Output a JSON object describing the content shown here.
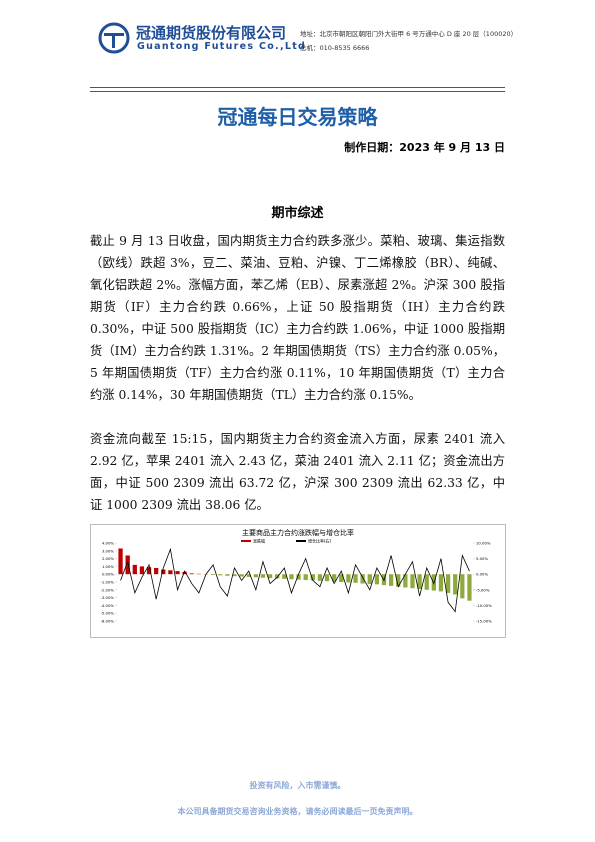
{
  "header": {
    "company": "冠通期货股份有限公司",
    "company_en": "Guantong Futures Co.,Ltd",
    "address": "地址：北京市朝阳区朝阳门外大街甲 6 号万通中心 D 座 20 层（100020）",
    "phone": "总机：010-8535 6666"
  },
  "title": "冠通每日交易策略",
  "date": "制作日期：2023 年 9 月 13 日",
  "section": "期市综述",
  "paragraphs": [
    "截止 9 月 13 日收盘，国内期货主力合约跌多涨少。菜粕、玻璃、集运指数（欧线）跌超 3%，豆二、菜油、豆粕、沪镍、丁二烯橡胶（BR）、纯碱、氧化铝跌超 2%。涨幅方面，苯乙烯（EB）、尿素涨超 2%。沪深 300 股指期货（IF）主力合约跌 0.66%，上证 50 股指期货（IH）主力合约跌 0.30%，中证 500 股指期货（IC）主力合约跌 1.06%，中证 1000 股指期货（IM）主力合约跌 1.31%。2 年期国债期货（TS）主力合约涨 0.05%，5 年期国债期货（TF）主力合约涨 0.11%，10 年期国债期货（T）主力合约涨 0.14%，30 年期国债期货（TL）主力合约涨 0.15%。",
    "资金流向截至 15:15，国内期货主力合约资金流入方面，尿素 2401 流入 2.92 亿，苹果 2401 流入 2.43 亿，菜油 2401 流入 2.11 亿；资金流出方面，中证 500 2309 流出 63.72 亿，沪深 300 2309 流出 62.33 亿，中证 1000 2309 流出 38.06 亿。"
  ],
  "chart_data": {
    "type": "bar",
    "title": "主要商品主力合约涨跌幅与增仓比率",
    "categories": [
      null,
      null,
      null,
      null,
      null,
      null,
      null,
      null,
      null,
      null,
      null,
      null,
      null,
      null,
      null,
      null,
      null,
      null,
      null,
      null,
      null,
      null,
      null,
      null,
      null,
      null,
      null,
      null,
      null,
      null,
      null,
      null,
      null,
      null,
      null,
      null,
      null,
      null,
      null,
      null,
      null,
      null,
      null,
      null,
      null,
      null,
      null,
      null,
      null,
      null
    ],
    "series": [
      {
        "name": "涨跌幅",
        "color": "#c00000",
        "neg_color": "#8faa3c",
        "values": [
          3.3,
          2.4,
          1.2,
          1.0,
          0.9,
          0.8,
          0.6,
          0.5,
          0.4,
          0.3,
          0.1,
          0.05,
          -0.05,
          -0.1,
          -0.15,
          -0.2,
          -0.25,
          -0.3,
          -0.35,
          -0.4,
          -0.45,
          -0.5,
          -0.55,
          -0.6,
          -0.65,
          -0.7,
          -0.75,
          -0.8,
          -0.85,
          -0.9,
          -0.95,
          -1.0,
          -1.05,
          -1.1,
          -1.2,
          -1.25,
          -1.3,
          -1.4,
          -1.5,
          -1.6,
          -1.7,
          -1.8,
          -1.9,
          -2.0,
          -2.1,
          -2.2,
          -2.4,
          -2.6,
          -3.1,
          -3.4
        ]
      },
      {
        "name": "增仓比率(右)",
        "color": "#000000",
        "axis": "y2",
        "values": [
          -2,
          4,
          -6,
          -1,
          3,
          -8,
          2,
          8,
          -5,
          1,
          -3,
          -6,
          0,
          3,
          -4,
          -7,
          2,
          -2,
          1,
          -5,
          4,
          -3,
          -1,
          2,
          -6,
          0,
          5,
          -2,
          -4,
          2,
          -3,
          1,
          -6,
          3,
          -1,
          -5,
          2,
          -2,
          6,
          -4,
          0,
          4,
          -7,
          2,
          -3,
          5,
          -9,
          -12,
          6,
          1
        ]
      }
    ],
    "ylim": [
      -6,
      4
    ],
    "yticks": [
      {
        "value": 4,
        "label": "4.00%"
      },
      {
        "value": 3,
        "label": "3.00%"
      },
      {
        "value": 2,
        "label": "2.00%"
      },
      {
        "value": 1,
        "label": "1.00%"
      },
      {
        "value": 0,
        "label": "0.00%"
      },
      {
        "value": -1,
        "label": "-1.00%"
      },
      {
        "value": -2,
        "label": "-2.00%"
      },
      {
        "value": -3,
        "label": "-3.00%"
      },
      {
        "value": -4,
        "label": "-4.00%"
      },
      {
        "value": -5,
        "label": "-5.00%"
      },
      {
        "value": -6,
        "label": "-6.00%"
      }
    ],
    "y2lim": [
      -15,
      10
    ],
    "y2ticks": [
      {
        "value": 10,
        "label": "10.00%"
      },
      {
        "value": 5,
        "label": "5.00%"
      },
      {
        "value": 0,
        "label": "0.00%"
      },
      {
        "value": -5,
        "label": "-5.00%"
      },
      {
        "value": -10,
        "label": "-10.00%"
      },
      {
        "value": -15,
        "label": "-15.00%"
      }
    ]
  },
  "footer": [
    "投资有风险，入市需谨慎。",
    "本公司具备期货交易咨询业务资格，请务必阅读最后一页免责声明。"
  ]
}
